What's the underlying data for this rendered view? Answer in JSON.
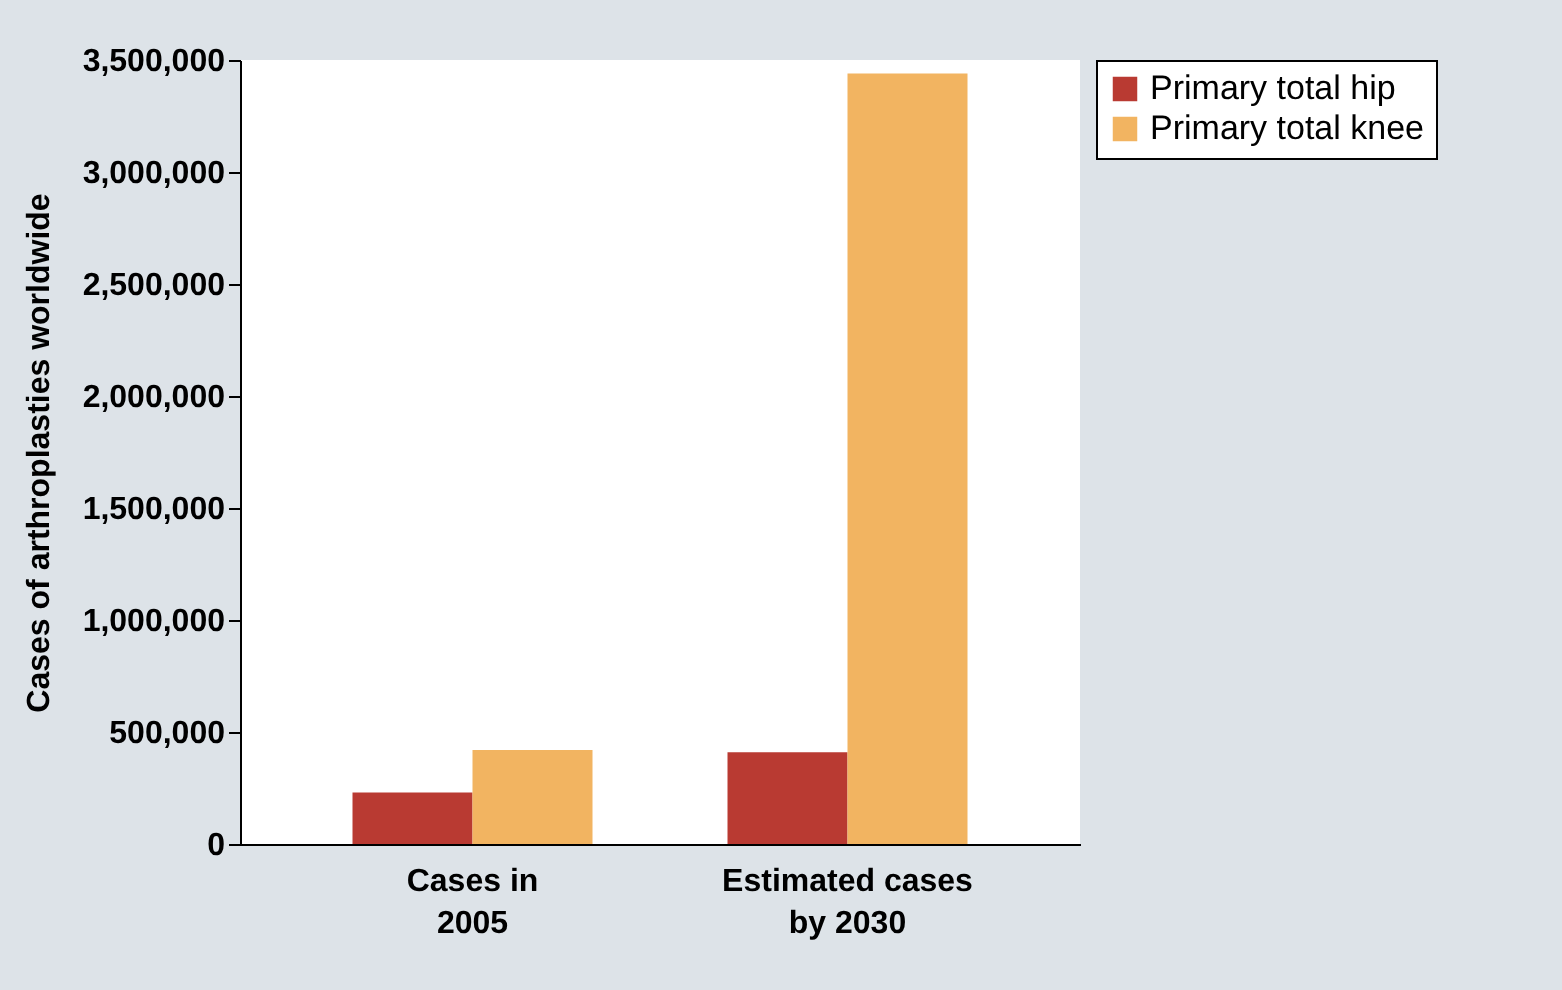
{
  "chart_data": {
    "type": "bar",
    "ylabel": "Cases of arthroplasties worldwide",
    "categories": [
      "Cases in\n2005",
      "Estimated cases\nby 2030"
    ],
    "series": [
      {
        "name": "Primary total hip",
        "color": "#b93a32",
        "values": [
          230000,
          410000
        ]
      },
      {
        "name": "Primary total knee",
        "color": "#f2b461",
        "values": [
          420000,
          3440000
        ]
      }
    ],
    "ylim": [
      0,
      3500000
    ],
    "yticks": [
      0,
      {
        "value": 500000,
        "label": "500,000"
      },
      {
        "value": 1000000,
        "label": "1,000,000"
      },
      {
        "value": 1500000,
        "label": "1,500,000"
      },
      {
        "value": 2000000,
        "label": "2,000,000"
      },
      {
        "value": 2500000,
        "label": "2,500,000"
      },
      {
        "value": 3000000,
        "label": "3,000,000"
      },
      {
        "value": 3500000,
        "label": "3,500,000"
      }
    ],
    "grid": false,
    "legend": "right"
  }
}
